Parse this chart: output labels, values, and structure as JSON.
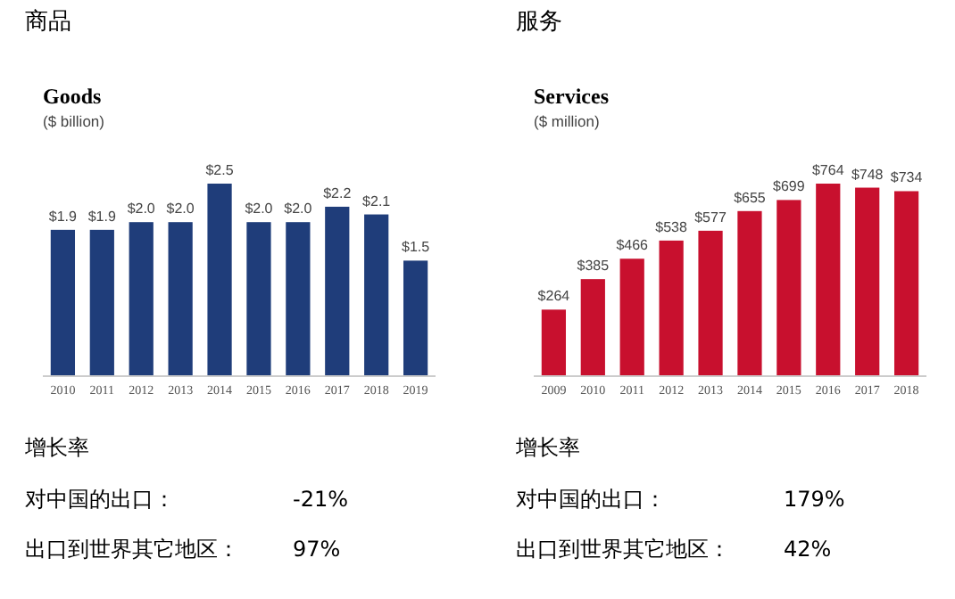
{
  "chart_data": [
    {
      "type": "bar",
      "title": "Goods",
      "subtitle": "($ billion)",
      "categories": [
        "2010",
        "2011",
        "2012",
        "2013",
        "2014",
        "2015",
        "2016",
        "2017",
        "2018",
        "2019"
      ],
      "values": [
        1.9,
        1.9,
        2.0,
        2.0,
        2.5,
        2.0,
        2.0,
        2.2,
        2.1,
        1.5
      ],
      "value_labels": [
        "$1.9",
        "$1.9",
        "$2.0",
        "$2.0",
        "$2.5",
        "$2.0",
        "$2.0",
        "$2.2",
        "$2.1",
        "$1.5"
      ],
      "color": "#1f3d7a",
      "tick_labels": "x",
      "annotations": [
        "商品",
        "增长率",
        "对中国的出口：",
        "-21%",
        "出口到世界其它地区：",
        "97%"
      ]
    },
    {
      "type": "bar",
      "title": "Services",
      "subtitle": "($ million)",
      "categories": [
        "2009",
        "2010",
        "2011",
        "2012",
        "2013",
        "2014",
        "2015",
        "2016",
        "2017",
        "2018"
      ],
      "values": [
        264,
        385,
        466,
        538,
        577,
        655,
        699,
        764,
        748,
        734
      ],
      "value_labels": [
        "$264",
        "$385",
        "$466",
        "$538",
        "$577",
        "$655",
        "$699",
        "$764",
        "$748",
        "$734"
      ],
      "color": "#c8102e",
      "tick_labels": "x",
      "annotations": [
        "服务",
        "增长率",
        "对中国的出口：",
        "179%",
        "出口到世界其它地区：",
        "42%"
      ]
    }
  ]
}
